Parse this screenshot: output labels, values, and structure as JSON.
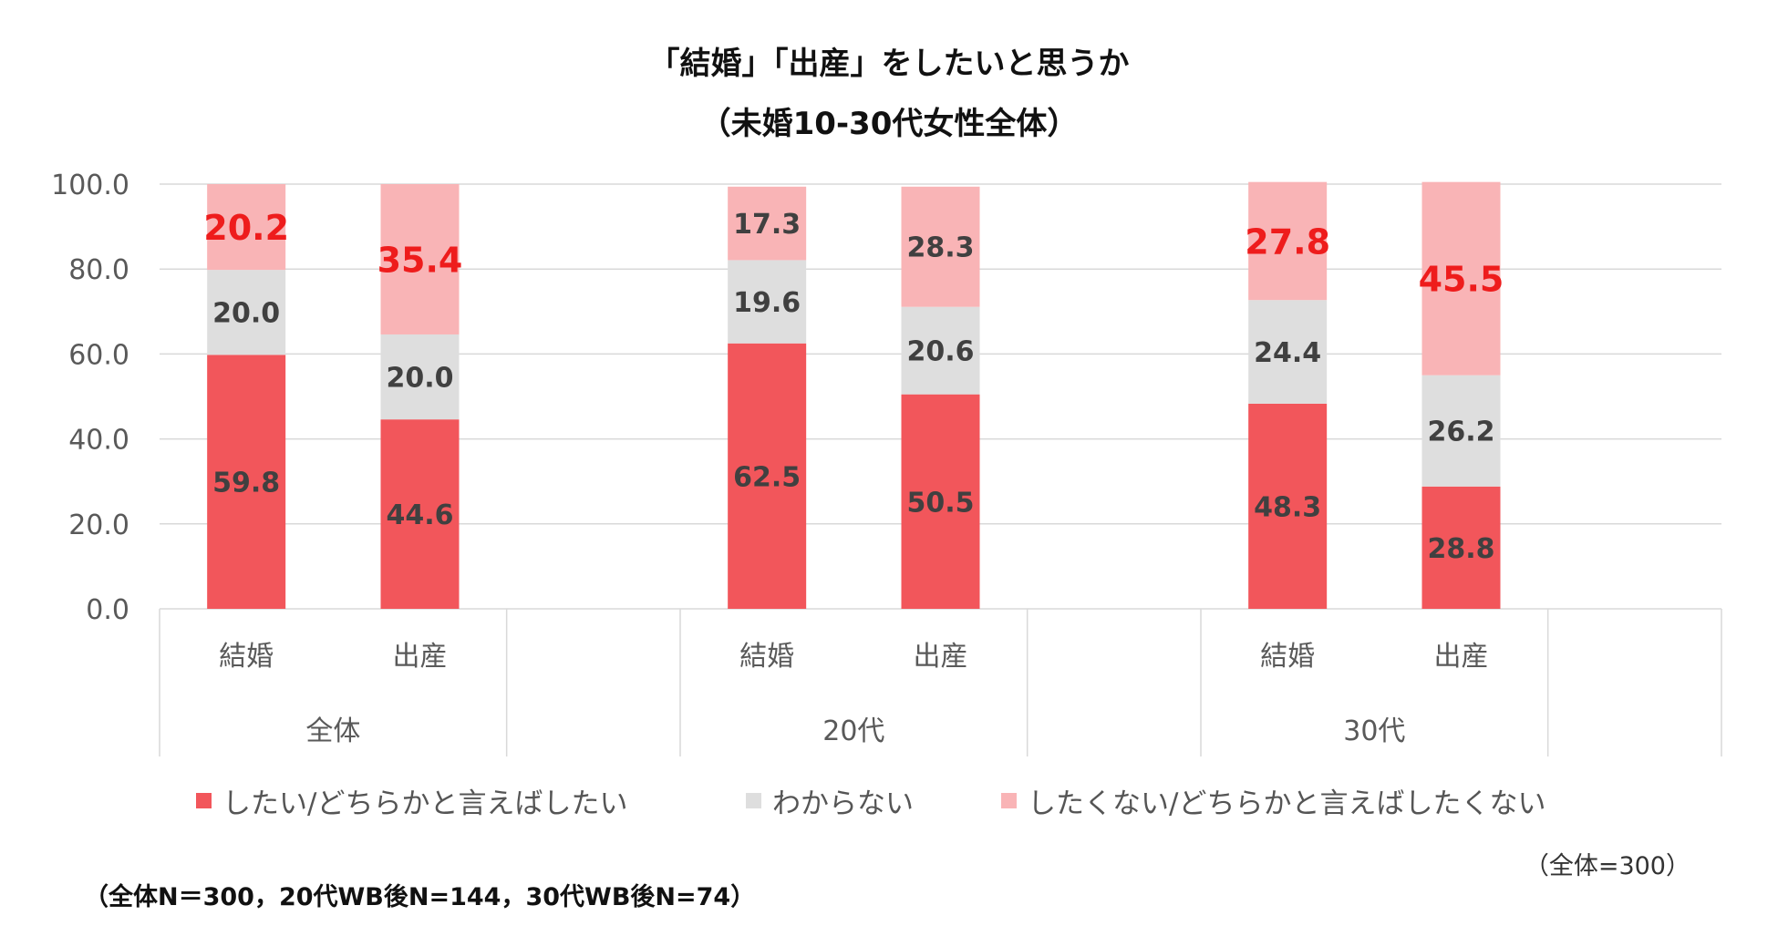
{
  "chart_data": {
    "type": "bar",
    "stacked": true,
    "title": "「結婚」「出産」をしたいと思うか",
    "subtitle": "（未婚10-30代女性全体）",
    "ylim": [
      0,
      100
    ],
    "yticks": [
      "0.0",
      "20.0",
      "40.0",
      "60.0",
      "80.0",
      "100.0"
    ],
    "grid": true,
    "groups": [
      {
        "label": "全体",
        "categories": [
          "結婚",
          "出産"
        ]
      },
      {
        "label": "20代",
        "categories": [
          "結婚",
          "出産"
        ]
      },
      {
        "label": "30代",
        "categories": [
          "結婚",
          "出産"
        ]
      }
    ],
    "categories": [
      "結婚",
      "出産",
      "結婚",
      "出産",
      "結婚",
      "出産"
    ],
    "series": [
      {
        "name": "したい/どちらかと言えばしたい",
        "color": "#f2565b",
        "label_color": "#404040",
        "values": [
          59.8,
          44.6,
          62.5,
          50.5,
          48.3,
          28.8
        ],
        "labels": [
          "59.8",
          "44.6",
          "62.5",
          "50.5",
          "48.3",
          "28.8"
        ]
      },
      {
        "name": "わからない",
        "color": "#dedede",
        "label_color": "#404040",
        "values": [
          20.0,
          20.0,
          19.6,
          20.6,
          24.4,
          26.2
        ],
        "labels": [
          "20.0",
          "20.0",
          "19.6",
          "20.6",
          "24.4",
          "26.2"
        ]
      },
      {
        "name": "したくない/どちらかと言えばしたくない",
        "color": "#f9b4b6",
        "label_color": "#404040",
        "highlight_color": "#ee1c1c",
        "values": [
          20.2,
          35.4,
          17.3,
          28.3,
          27.8,
          45.5
        ],
        "labels": [
          "20.2",
          "35.4",
          "17.3",
          "28.3",
          "27.8",
          "45.5"
        ],
        "highlighted": [
          true,
          true,
          false,
          false,
          true,
          true
        ]
      }
    ],
    "legend_position": "bottom"
  },
  "notes": {
    "total": "（全体=300）",
    "footnote": "（全体N＝300，20代WB後N=144，30代WB後N=74）"
  }
}
